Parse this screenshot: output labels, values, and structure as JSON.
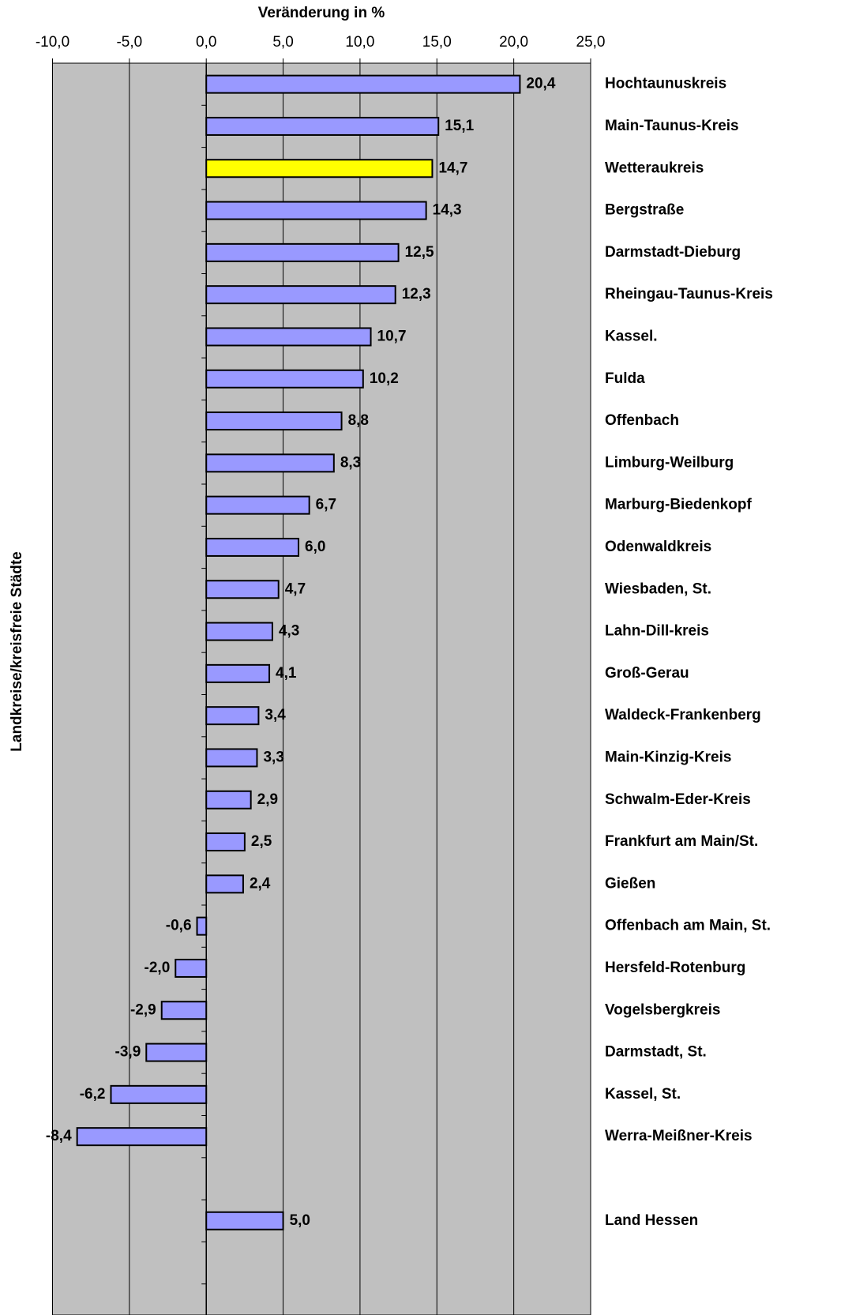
{
  "chart_data": {
    "type": "bar",
    "orientation": "horizontal",
    "x_label": "Veränderung in %",
    "y_label": "Landkreise/kreisfreie Städte",
    "categories": [
      "Hochtaunuskreis",
      "Main-Taunus-Kreis",
      "Wetteraukreis",
      "Bergstraße",
      "Darmstadt-Dieburg",
      "Rheingau-Taunus-Kreis",
      "Kassel.",
      "Fulda",
      "Offenbach",
      "Limburg-Weilburg",
      "Marburg-Biedenkopf",
      "Odenwaldkreis",
      "Wiesbaden, St.",
      "Lahn-Dill-kreis",
      "Groß-Gerau",
      "Waldeck-Frankenberg",
      "Main-Kinzig-Kreis",
      "Schwalm-Eder-Kreis",
      "Frankfurt am Main/St.",
      "Gießen",
      "Offenbach am Main, St.",
      "Hersfeld-Rotenburg",
      "Vogelsbergkreis",
      "Darmstadt, St.",
      "Kassel, St.",
      "Werra-Meißner-Kreis",
      null,
      "Land Hessen"
    ],
    "values": [
      20.4,
      15.1,
      14.7,
      14.3,
      12.5,
      12.3,
      10.7,
      10.2,
      8.8,
      8.3,
      6.7,
      6.0,
      4.7,
      4.3,
      4.1,
      3.4,
      3.3,
      2.9,
      2.5,
      2.4,
      -0.6,
      -2.0,
      -2.9,
      -3.9,
      -6.2,
      -8.4,
      null,
      5.0
    ],
    "value_labels": [
      "20,4",
      "15,1",
      "14,7",
      "14,3",
      "12,5",
      "12,3",
      "10,7",
      "10,2",
      "8,8",
      "8,3",
      "6,7",
      "6,0",
      "4,7",
      "4,3",
      "4,1",
      "3,4",
      "3,3",
      "2,9",
      "2,5",
      "2,4",
      "-0,6",
      "-2,0",
      "-2,9",
      "-3,9",
      "-6,2",
      "-8,4",
      null,
      "5,0"
    ],
    "colors": [
      "#9999ff",
      "#9999ff",
      "#ffff00",
      "#9999ff",
      "#9999ff",
      "#9999ff",
      "#9999ff",
      "#9999ff",
      "#9999ff",
      "#9999ff",
      "#9999ff",
      "#9999ff",
      "#9999ff",
      "#9999ff",
      "#9999ff",
      "#9999ff",
      "#9999ff",
      "#9999ff",
      "#9999ff",
      "#9999ff",
      "#9999ff",
      "#9999ff",
      "#9999ff",
      "#9999ff",
      "#9999ff",
      "#9999ff",
      null,
      "#9999ff"
    ],
    "xlim": [
      -10,
      25
    ],
    "xticks": [
      {
        "value": -10,
        "label": "-10,0"
      },
      {
        "value": -5,
        "label": "-5,0"
      },
      {
        "value": 0,
        "label": "0,0"
      },
      {
        "value": 5,
        "label": "5,0"
      },
      {
        "value": 10,
        "label": "10,0"
      },
      {
        "value": 15,
        "label": "15,0"
      },
      {
        "value": 20,
        "label": "20,0"
      },
      {
        "value": 25,
        "label": "25,0"
      }
    ],
    "grid": true,
    "plot_background": "#c0c0c0"
  }
}
